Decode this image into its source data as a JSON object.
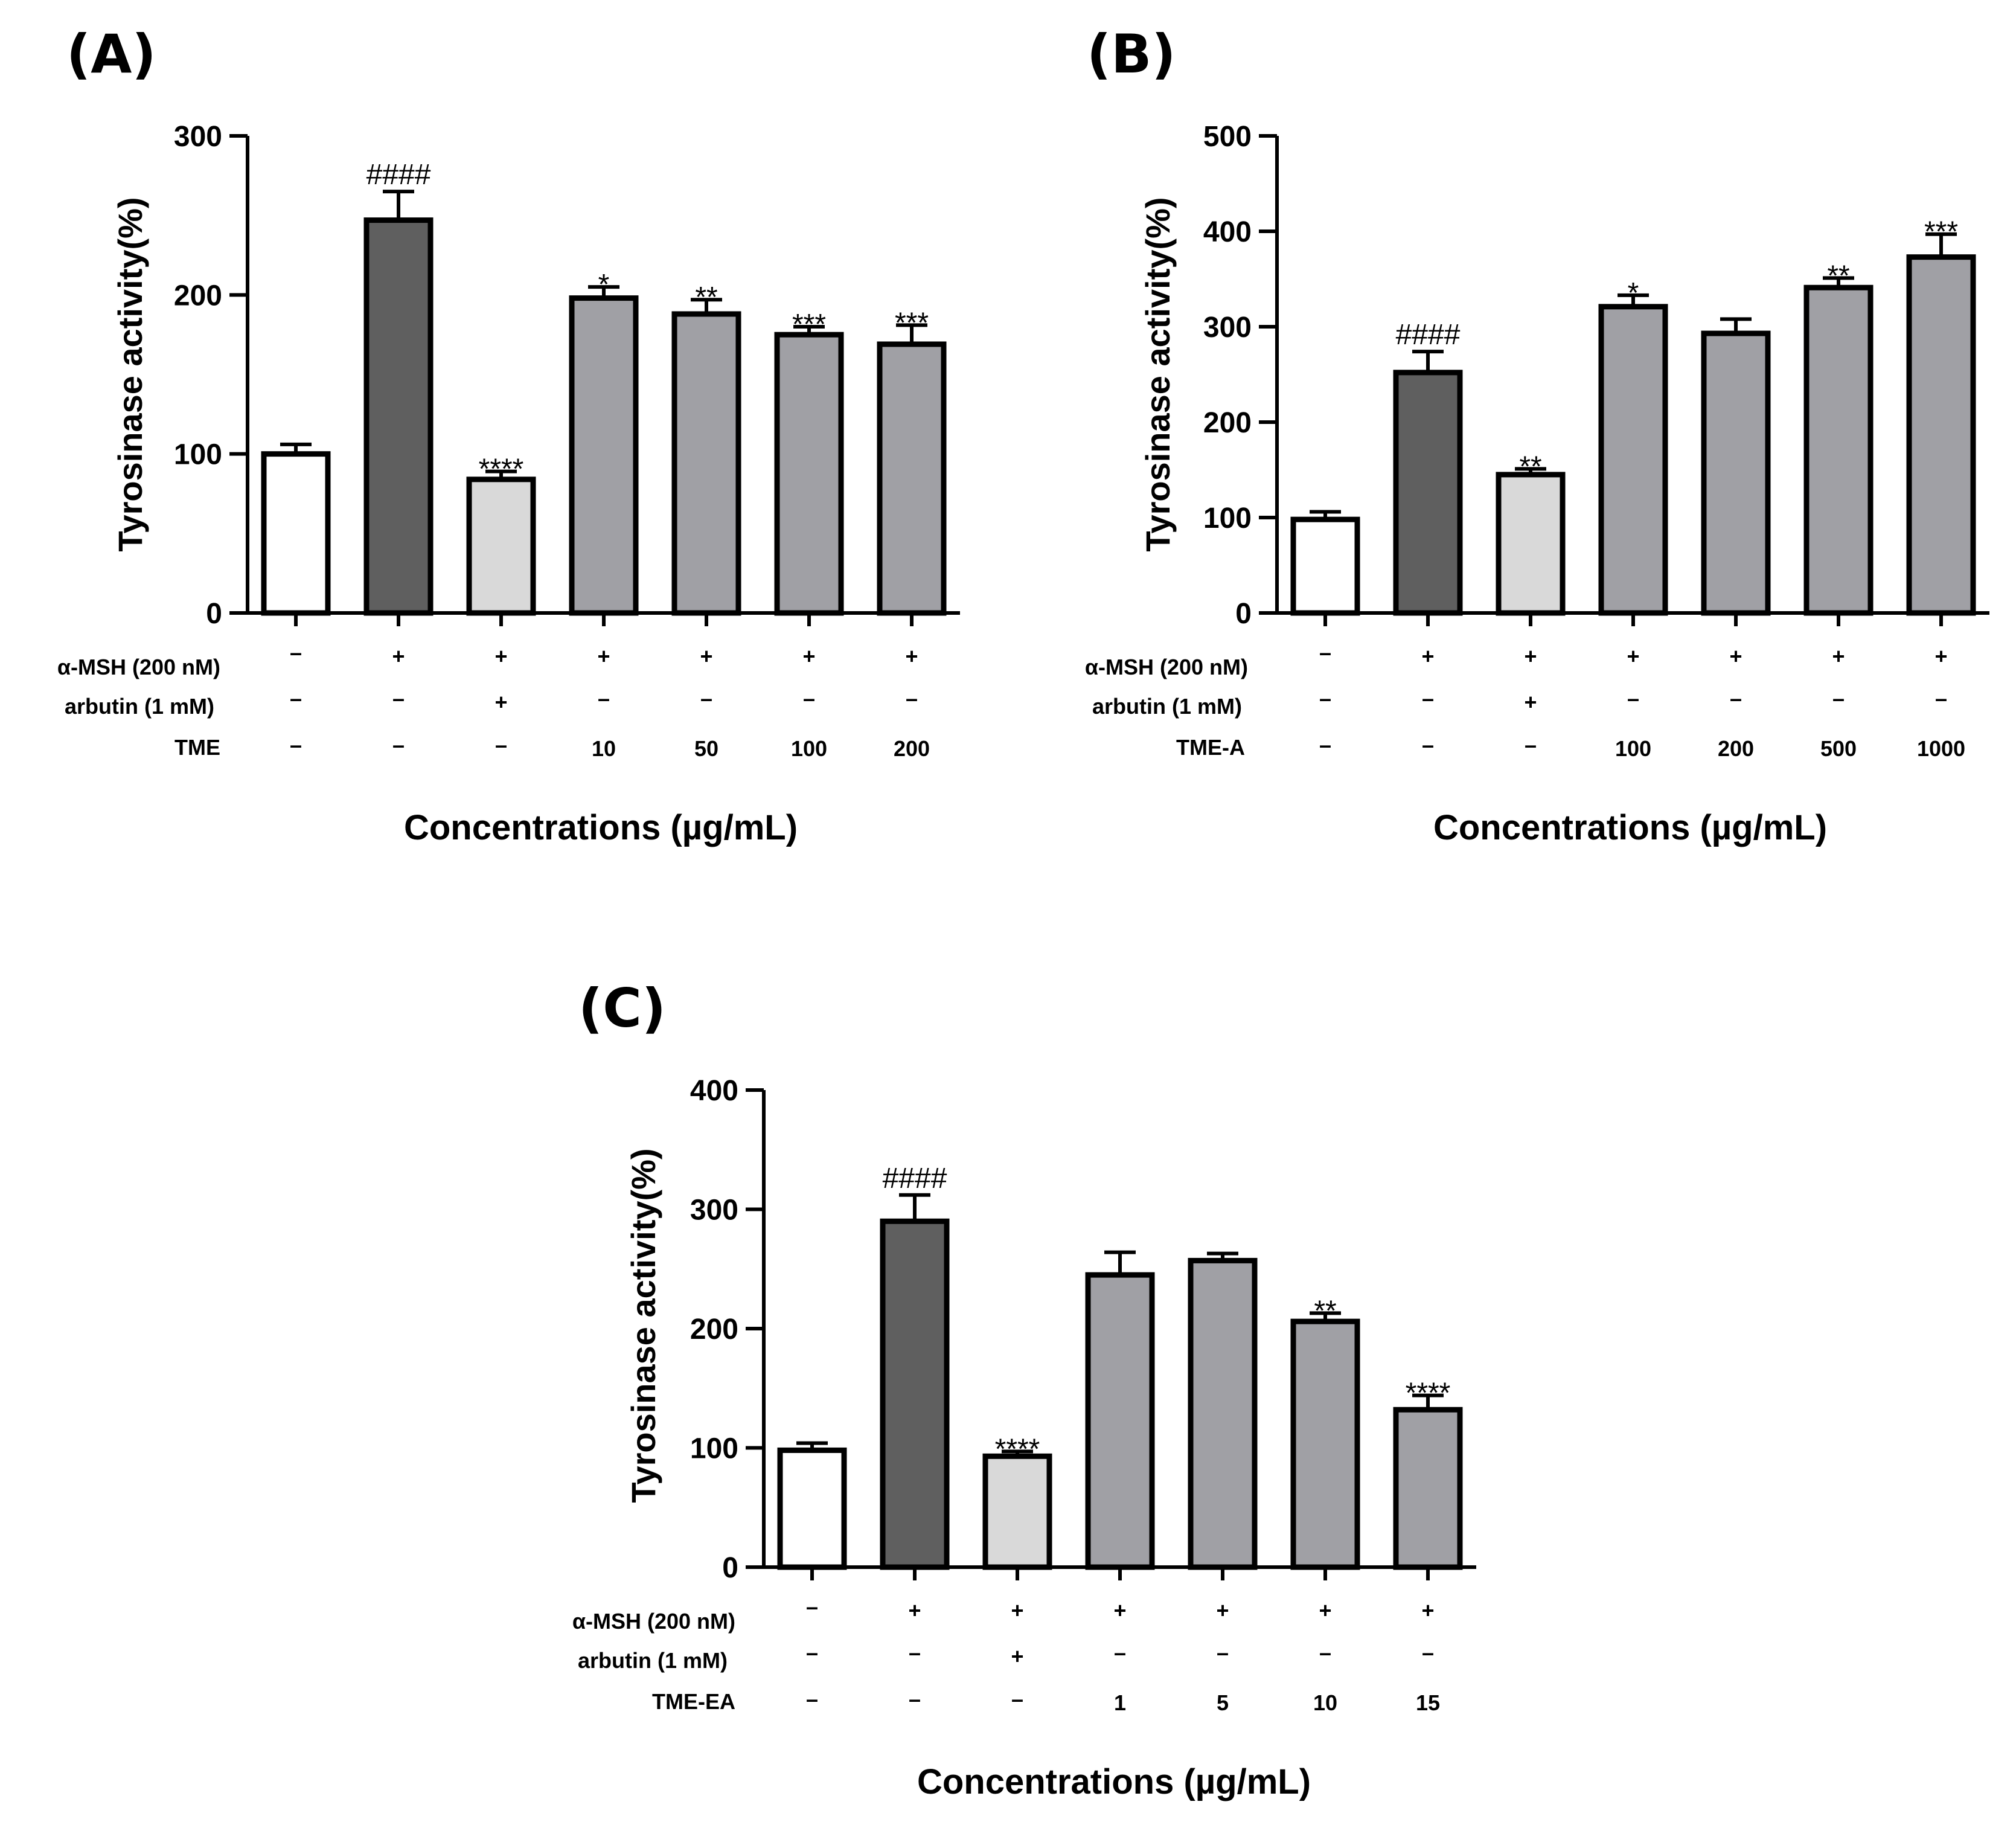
{
  "chart_data": [
    {
      "panel_label": "(A)",
      "type": "bar",
      "ylabel": "Tyrosinase activity(%)",
      "xlabel": "Concentrations (µg/mL)",
      "ylim": [
        0,
        300
      ],
      "yticks": [
        0,
        100,
        200,
        300
      ],
      "row_labels": [
        "α-MSH (200 nM)",
        "arbutin (1 mM)",
        "TME"
      ],
      "bars": [
        {
          "value": 100,
          "error": 6,
          "fill": "#ffffff",
          "annotation": "",
          "rows": [
            "–",
            "–",
            "–"
          ]
        },
        {
          "value": 247,
          "error": 18,
          "fill": "#5f5f5f",
          "annotation": "####",
          "rows": [
            "+",
            "–",
            "–"
          ]
        },
        {
          "value": 84,
          "error": 5,
          "fill": "#d9d9d9",
          "annotation": "****",
          "rows": [
            "+",
            "+",
            "–"
          ]
        },
        {
          "value": 198,
          "error": 7,
          "fill": "#a0a0a5",
          "annotation": "*",
          "rows": [
            "+",
            "–",
            "10"
          ]
        },
        {
          "value": 188,
          "error": 9,
          "fill": "#a0a0a5",
          "annotation": "**",
          "rows": [
            "+",
            "–",
            "50"
          ]
        },
        {
          "value": 175,
          "error": 5,
          "fill": "#a0a0a5",
          "annotation": "***",
          "rows": [
            "+",
            "–",
            "100"
          ]
        },
        {
          "value": 169,
          "error": 12,
          "fill": "#a0a0a5",
          "annotation": "***",
          "rows": [
            "+",
            "–",
            "200"
          ]
        }
      ]
    },
    {
      "panel_label": "(B)",
      "type": "bar",
      "ylabel": "Tyrosinase activity(%)",
      "xlabel": "Concentrations (µg/mL)",
      "ylim": [
        0,
        500
      ],
      "yticks": [
        0,
        100,
        200,
        300,
        400,
        500
      ],
      "row_labels": [
        "α-MSH (200 nM)",
        "arbutin (1 mM)",
        "TME-A"
      ],
      "bars": [
        {
          "value": 98,
          "error": 8,
          "fill": "#ffffff",
          "annotation": "",
          "rows": [
            "–",
            "–",
            "–"
          ]
        },
        {
          "value": 252,
          "error": 22,
          "fill": "#5f5f5f",
          "annotation": "####",
          "rows": [
            "+",
            "–",
            "–"
          ]
        },
        {
          "value": 145,
          "error": 6,
          "fill": "#d9d9d9",
          "annotation": "**",
          "rows": [
            "+",
            "+",
            "–"
          ]
        },
        {
          "value": 321,
          "error": 12,
          "fill": "#a0a0a5",
          "annotation": "*",
          "rows": [
            "+",
            "–",
            "100"
          ]
        },
        {
          "value": 293,
          "error": 15,
          "fill": "#a0a0a5",
          "annotation": "",
          "rows": [
            "+",
            "–",
            "200"
          ]
        },
        {
          "value": 341,
          "error": 10,
          "fill": "#a0a0a5",
          "annotation": "**",
          "rows": [
            "+",
            "–",
            "500"
          ]
        },
        {
          "value": 373,
          "error": 24,
          "fill": "#a0a0a5",
          "annotation": "***",
          "rows": [
            "+",
            "–",
            "1000"
          ]
        }
      ]
    },
    {
      "panel_label": "(C)",
      "type": "bar",
      "ylabel": "Tyrosinase activity(%)",
      "xlabel": "Concentrations (µg/mL)",
      "ylim": [
        0,
        400
      ],
      "yticks": [
        0,
        100,
        200,
        300,
        400
      ],
      "row_labels": [
        "α-MSH (200 nM)",
        "arbutin (1 mM)",
        "TME-EA"
      ],
      "bars": [
        {
          "value": 98,
          "error": 6,
          "fill": "#ffffff",
          "annotation": "",
          "rows": [
            "–",
            "–",
            "–"
          ]
        },
        {
          "value": 290,
          "error": 22,
          "fill": "#5f5f5f",
          "annotation": "####",
          "rows": [
            "+",
            "–",
            "–"
          ]
        },
        {
          "value": 93,
          "error": 4,
          "fill": "#d9d9d9",
          "annotation": "****",
          "rows": [
            "+",
            "+",
            "–"
          ]
        },
        {
          "value": 245,
          "error": 19,
          "fill": "#a0a0a5",
          "annotation": "",
          "rows": [
            "+",
            "–",
            "1"
          ]
        },
        {
          "value": 257,
          "error": 6,
          "fill": "#a0a0a5",
          "annotation": "",
          "rows": [
            "+",
            "–",
            "5"
          ]
        },
        {
          "value": 206,
          "error": 7,
          "fill": "#a0a0a5",
          "annotation": "**",
          "rows": [
            "+",
            "–",
            "10"
          ]
        },
        {
          "value": 132,
          "error": 12,
          "fill": "#a0a0a5",
          "annotation": "****",
          "rows": [
            "+",
            "–",
            "15"
          ]
        }
      ]
    }
  ]
}
